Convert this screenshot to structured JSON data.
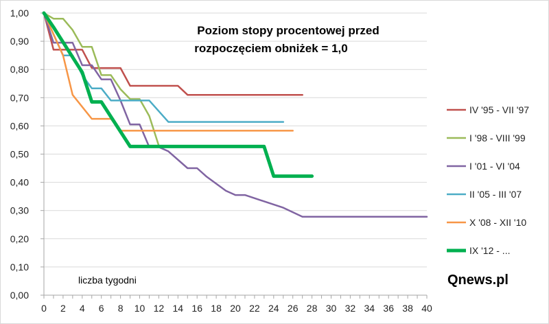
{
  "chart_data": {
    "type": "line",
    "title_lines": [
      "Poziom stopy procentowej przed",
      "rozpoczęciem obniżek = 1,0"
    ],
    "x_annotation": "liczba tygodni",
    "brand": "Qnews.pl",
    "xlim": [
      0,
      40
    ],
    "ylim": [
      0,
      1
    ],
    "x_ticks": [
      "0",
      "2",
      "4",
      "6",
      "8",
      "10",
      "12",
      "14",
      "16",
      "18",
      "20",
      "22",
      "24",
      "26",
      "28",
      "30",
      "32",
      "34",
      "36",
      "38",
      "40"
    ],
    "y_ticks": [
      "0,00",
      "0,10",
      "0,20",
      "0,30",
      "0,40",
      "0,50",
      "0,60",
      "0,70",
      "0,80",
      "0,90",
      "1,00"
    ],
    "grid": "horizontal",
    "legend_position": "right",
    "series": [
      {
        "name": "IV '95 - VII '97",
        "color": "#c0504d",
        "width": 2.5,
        "points": [
          [
            0,
            1.0
          ],
          [
            1,
            0.87
          ],
          [
            4,
            0.87
          ],
          [
            5,
            0.805
          ],
          [
            8,
            0.805
          ],
          [
            9,
            0.742
          ],
          [
            14,
            0.742
          ],
          [
            15,
            0.71
          ],
          [
            27,
            0.71
          ]
        ]
      },
      {
        "name": "I '98 - VIII '99",
        "color": "#9bbb59",
        "width": 2.5,
        "points": [
          [
            0,
            1.0
          ],
          [
            1,
            0.98
          ],
          [
            2,
            0.98
          ],
          [
            3,
            0.94
          ],
          [
            4,
            0.88
          ],
          [
            5,
            0.88
          ],
          [
            6,
            0.78
          ],
          [
            7,
            0.78
          ],
          [
            8,
            0.73
          ],
          [
            9,
            0.695
          ],
          [
            10,
            0.695
          ],
          [
            11,
            0.635
          ],
          [
            12,
            0.53
          ]
        ]
      },
      {
        "name": "I '01 - VI '04",
        "color": "#8064a2",
        "width": 2.5,
        "points": [
          [
            0,
            1.0
          ],
          [
            1,
            0.895
          ],
          [
            3,
            0.895
          ],
          [
            4,
            0.815
          ],
          [
            5,
            0.815
          ],
          [
            6,
            0.765
          ],
          [
            7,
            0.765
          ],
          [
            8,
            0.69
          ],
          [
            9,
            0.605
          ],
          [
            10,
            0.605
          ],
          [
            11,
            0.525
          ],
          [
            12,
            0.525
          ],
          [
            13,
            0.51
          ],
          [
            15,
            0.45
          ],
          [
            16,
            0.45
          ],
          [
            17,
            0.42
          ],
          [
            19,
            0.37
          ],
          [
            20,
            0.355
          ],
          [
            21,
            0.355
          ],
          [
            25,
            0.31
          ],
          [
            27,
            0.278
          ],
          [
            40,
            0.278
          ]
        ]
      },
      {
        "name": "II '05 - III '07",
        "color": "#4bacc6",
        "width": 2.5,
        "points": [
          [
            0,
            1.0
          ],
          [
            2,
            0.85
          ],
          [
            3,
            0.85
          ],
          [
            4,
            0.78
          ],
          [
            5,
            0.733
          ],
          [
            6,
            0.733
          ],
          [
            7,
            0.69
          ],
          [
            11,
            0.69
          ],
          [
            13,
            0.614
          ],
          [
            25,
            0.614
          ]
        ]
      },
      {
        "name": "X '08 - XII '10",
        "color": "#f79646",
        "width": 2.5,
        "points": [
          [
            0,
            1.0
          ],
          [
            2,
            0.85
          ],
          [
            3,
            0.71
          ],
          [
            5,
            0.625
          ],
          [
            7,
            0.625
          ],
          [
            8,
            0.583
          ],
          [
            26,
            0.583
          ]
        ]
      },
      {
        "name": "IX '12 - ...",
        "color": "#00b050",
        "width": 5,
        "points": [
          [
            0,
            1.0
          ],
          [
            1,
            0.95
          ],
          [
            4,
            0.79
          ],
          [
            5,
            0.685
          ],
          [
            6,
            0.685
          ],
          [
            9,
            0.527
          ],
          [
            23,
            0.527
          ],
          [
            24,
            0.422
          ],
          [
            28,
            0.422
          ]
        ]
      }
    ]
  }
}
